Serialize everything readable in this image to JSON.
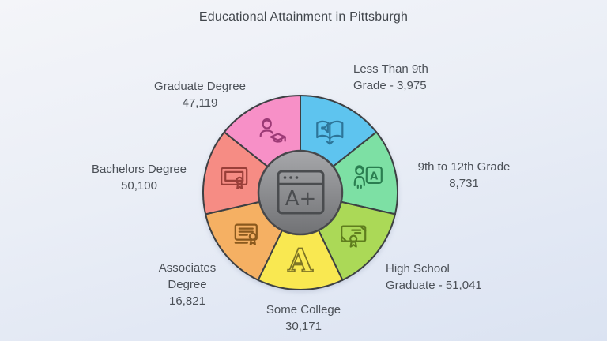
{
  "title": "Educational Attainment in Pittsburgh",
  "chart_data": {
    "type": "pie",
    "title": "Educational Attainment in Pittsburgh",
    "equal_angle_slices": true,
    "start_angle_deg": -90,
    "legend_position": "labels-around-pie",
    "outline_color": "#3d4043",
    "categories": [
      "Less Than 9th Grade",
      "9th to 12th Grade",
      "High School Graduate",
      "Some College",
      "Associates Degree",
      "Bachelors Degree",
      "Graduate Degree"
    ],
    "values": [
      3975,
      8731,
      51041,
      30171,
      16821,
      50100,
      47119
    ],
    "slices": [
      {
        "label": "Less Than 9th Grade",
        "value": 3975,
        "value_text": "3,975",
        "color": "#5ec4ef",
        "icon": "audiobook-icon",
        "icon_color": "#2d7599",
        "lines": [
          "Less Than 9th",
          "Grade - 3,975"
        ]
      },
      {
        "label": "9th to 12th Grade",
        "value": 8731,
        "value_text": "8,731",
        "color": "#7de0a4",
        "icon": "teacher-board-icon",
        "icon_color": "#2a7e50",
        "lines": [
          "9th to 12th Grade",
          "8,731"
        ]
      },
      {
        "label": "High School Graduate",
        "value": 51041,
        "value_text": "51,041",
        "color": "#abd957",
        "icon": "diploma-seal-icon",
        "icon_color": "#5f7d1e",
        "lines": [
          "High School",
          "Graduate - 51,041"
        ]
      },
      {
        "label": "Some College",
        "value": 30171,
        "value_text": "30,171",
        "color": "#f9e851",
        "icon": "serif-letter-a-icon",
        "icon_color": "#7f7526",
        "lines": [
          "Some College",
          "30,171"
        ]
      },
      {
        "label": "Associates Degree",
        "value": 16821,
        "value_text": "16,821",
        "color": "#f5b063",
        "icon": "certificate-lines-icon",
        "icon_color": "#8a591d",
        "lines": [
          "Associates",
          "Degree",
          "16,821"
        ]
      },
      {
        "label": "Bachelors Degree",
        "value": 50100,
        "value_text": "50,100",
        "color": "#f68c84",
        "icon": "framed-diploma-icon",
        "icon_color": "#9a3f39",
        "lines": [
          "Bachelors Degree",
          "50,100"
        ]
      },
      {
        "label": "Graduate Degree",
        "value": 47119,
        "value_text": "47,119",
        "color": "#f790c7",
        "icon": "graduate-with-cap-icon",
        "icon_color": "#9c3a76",
        "lines": [
          "Graduate Degree",
          "47,119"
        ]
      }
    ],
    "center_badge": {
      "icon": "browser-window-icon",
      "text": "A+"
    }
  }
}
